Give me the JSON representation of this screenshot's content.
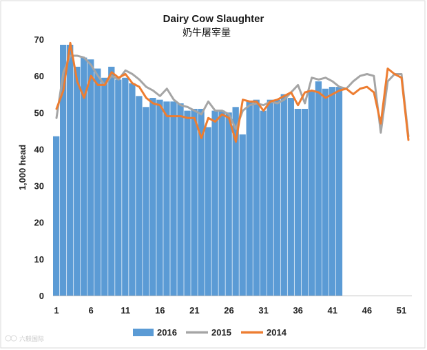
{
  "chart_data": {
    "type": "bar",
    "title": "Dairy Cow Slaughter",
    "subtitle": "奶牛屠宰量",
    "ylabel": "1,000 head",
    "xlabel": "",
    "ylim": [
      0,
      70
    ],
    "yticks": [
      "0",
      "10",
      "20",
      "30",
      "40",
      "50",
      "60",
      "70"
    ],
    "xticks": [
      "1",
      "6",
      "11",
      "16",
      "21",
      "26",
      "31",
      "36",
      "41",
      "46",
      "51"
    ],
    "xtick_weeks": [
      1,
      6,
      11,
      16,
      21,
      26,
      31,
      36,
      41,
      46,
      51
    ],
    "weeks": 52,
    "grid": false,
    "legend": [
      "2016",
      "2015",
      "2014"
    ],
    "legend_position": "bottom",
    "colors": {
      "s2016": "#5b9bd5",
      "s2015": "#a5a5a5",
      "s2014": "#ed7d31"
    },
    "series": [
      {
        "name": "2016",
        "type": "bar",
        "values": [
          43.5,
          68.5,
          68.5,
          62.5,
          65,
          64.5,
          62,
          59.5,
          62.5,
          59,
          59.5,
          58,
          54.5,
          51.5,
          54,
          53.5,
          53,
          53,
          52.5,
          50.5,
          51,
          51,
          46,
          50.5,
          50.5,
          50,
          51.5,
          44,
          53,
          53.5,
          50.5,
          53.5,
          53.5,
          55,
          54,
          51,
          51,
          56,
          58.5,
          56.5,
          57,
          57
        ]
      },
      {
        "name": "2015",
        "type": "line",
        "values": [
          48.5,
          61,
          65.5,
          65.5,
          65,
          63,
          60,
          57.5,
          60,
          59,
          61.5,
          60.5,
          59,
          57,
          56,
          54.5,
          56.5,
          53.5,
          52,
          51.5,
          50.5,
          49.5,
          53,
          50.5,
          50.5,
          49.5,
          45.5,
          50.5,
          52,
          52.5,
          52,
          53,
          52.5,
          53.5,
          55.5,
          57.5,
          52.5,
          59.5,
          59,
          59.5,
          58.5,
          57,
          56.5,
          58.5,
          60,
          60.5,
          60,
          44.5,
          58.5,
          60.5,
          60.5,
          43.5
        ]
      },
      {
        "name": "2014",
        "type": "line",
        "values": [
          51,
          56,
          69,
          58.5,
          54,
          60,
          57.5,
          57.5,
          61,
          59.5,
          60.5,
          58,
          57,
          54,
          52.5,
          52,
          49,
          49,
          49,
          48.5,
          48.5,
          43,
          48.5,
          47.5,
          49.5,
          48.5,
          42,
          53.5,
          53,
          53,
          50.5,
          53,
          53.5,
          54.5,
          55.5,
          52,
          55.5,
          56,
          55.5,
          54,
          55,
          56,
          56.5,
          55,
          56.5,
          57,
          55.5,
          47,
          62,
          60.5,
          59.5,
          42.5
        ]
      }
    ]
  },
  "watermark": "六毅国际"
}
